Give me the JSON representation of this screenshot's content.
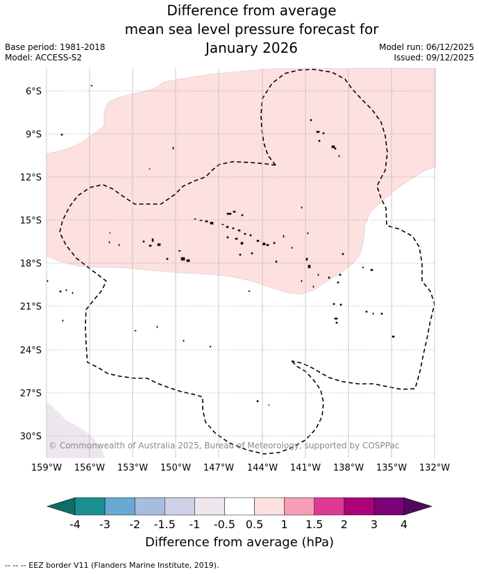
{
  "title": {
    "line1": "Difference from average",
    "line2": "mean sea level pressure forecast for",
    "line3": "January 2026"
  },
  "meta": {
    "base_period": "Base period: 1981-2018",
    "model": "Model: ACCESS-S2",
    "model_run": "Model run: 06/12/2025",
    "issued": "Issued: 09/12/2025"
  },
  "map": {
    "lat_labels": [
      "6°S",
      "9°S",
      "12°S",
      "15°S",
      "18°S",
      "21°S",
      "24°S",
      "27°S",
      "30°S"
    ],
    "lon_labels": [
      "159°W",
      "156°W",
      "153°W",
      "150°W",
      "147°W",
      "144°W",
      "141°W",
      "138°W",
      "135°W",
      "132°W"
    ],
    "copyright": "© Commonwealth of Australia 2025, Bureau of Meteorology, supported by COSPPac",
    "colors": {
      "positive_anomaly_fill": "#fde0e0",
      "negative_anomaly_fill": "#ede6ee",
      "gridline": "#8c8c8c",
      "eez_border": "#000000"
    }
  },
  "colorbar": {
    "ticks": [
      "-4",
      "-3",
      "-2",
      "-1.5",
      "-1",
      "-0.5",
      "0.5",
      "1",
      "1.5",
      "2",
      "3",
      "4"
    ],
    "title": "Difference from average (hPa)",
    "low_extend_color": "#0d6f63",
    "high_extend_color": "#4f0a5c",
    "colors": [
      "#1a9093",
      "#68aad3",
      "#a6bde0",
      "#cdd1e6",
      "#ede6ee",
      "#ffffff",
      "#fde0e0",
      "#f89db8",
      "#df3996",
      "#ad037a",
      "#7a0177"
    ]
  },
  "footnote": "--  --  -- EEZ border V11 (Flanders Marine Institute, 2019)."
}
